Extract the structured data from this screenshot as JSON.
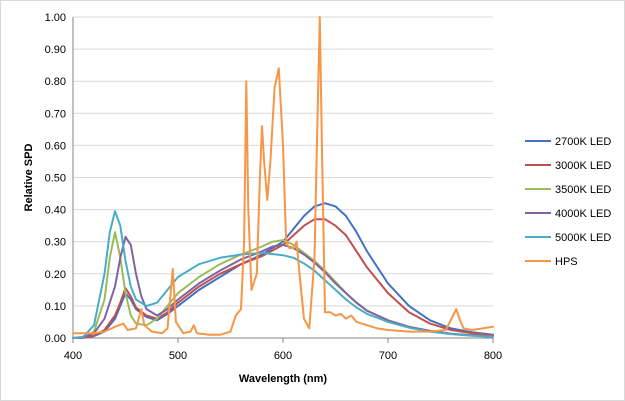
{
  "chart_data": {
    "type": "line",
    "xlabel": "Wavelength (nm)",
    "ylabel": "Relative SPD",
    "xlim": [
      400,
      800
    ],
    "ylim": [
      0,
      1
    ],
    "xticks": [
      "400",
      "500",
      "600",
      "700",
      "800"
    ],
    "yticks": [
      "0.00",
      "0.10",
      "0.20",
      "0.30",
      "0.40",
      "0.50",
      "0.60",
      "0.70",
      "0.80",
      "0.90",
      "1.00"
    ],
    "grid": "horizontal",
    "legend_position": "right",
    "series": [
      {
        "name": "2700K LED",
        "color": "#4472C4",
        "points": [
          [
            400,
            0
          ],
          [
            410,
            0.001
          ],
          [
            420,
            0.006
          ],
          [
            430,
            0.02
          ],
          [
            440,
            0.06
          ],
          [
            445,
            0.1
          ],
          [
            450,
            0.14
          ],
          [
            455,
            0.12
          ],
          [
            460,
            0.09
          ],
          [
            470,
            0.065
          ],
          [
            480,
            0.055
          ],
          [
            490,
            0.075
          ],
          [
            500,
            0.1
          ],
          [
            520,
            0.15
          ],
          [
            540,
            0.19
          ],
          [
            560,
            0.23
          ],
          [
            580,
            0.26
          ],
          [
            600,
            0.3
          ],
          [
            610,
            0.34
          ],
          [
            620,
            0.38
          ],
          [
            630,
            0.41
          ],
          [
            640,
            0.42
          ],
          [
            650,
            0.41
          ],
          [
            660,
            0.38
          ],
          [
            670,
            0.33
          ],
          [
            680,
            0.27
          ],
          [
            690,
            0.22
          ],
          [
            700,
            0.17
          ],
          [
            720,
            0.1
          ],
          [
            740,
            0.055
          ],
          [
            760,
            0.03
          ],
          [
            780,
            0.018
          ],
          [
            800,
            0.01
          ]
        ]
      },
      {
        "name": "3000K LED",
        "color": "#C0504D",
        "points": [
          [
            400,
            0
          ],
          [
            410,
            0.001
          ],
          [
            420,
            0.007
          ],
          [
            430,
            0.025
          ],
          [
            440,
            0.07
          ],
          [
            445,
            0.11
          ],
          [
            450,
            0.155
          ],
          [
            455,
            0.13
          ],
          [
            460,
            0.095
          ],
          [
            470,
            0.07
          ],
          [
            480,
            0.06
          ],
          [
            490,
            0.08
          ],
          [
            500,
            0.11
          ],
          [
            520,
            0.16
          ],
          [
            540,
            0.2
          ],
          [
            560,
            0.23
          ],
          [
            580,
            0.255
          ],
          [
            600,
            0.29
          ],
          [
            610,
            0.32
          ],
          [
            620,
            0.35
          ],
          [
            630,
            0.37
          ],
          [
            640,
            0.37
          ],
          [
            650,
            0.35
          ],
          [
            660,
            0.32
          ],
          [
            670,
            0.27
          ],
          [
            680,
            0.22
          ],
          [
            690,
            0.18
          ],
          [
            700,
            0.14
          ],
          [
            720,
            0.08
          ],
          [
            740,
            0.045
          ],
          [
            760,
            0.025
          ],
          [
            780,
            0.015
          ],
          [
            800,
            0.008
          ]
        ]
      },
      {
        "name": "3500K LED",
        "color": "#9BBB59",
        "points": [
          [
            400,
            0
          ],
          [
            410,
            0.002
          ],
          [
            420,
            0.02
          ],
          [
            430,
            0.12
          ],
          [
            435,
            0.25
          ],
          [
            440,
            0.33
          ],
          [
            445,
            0.25
          ],
          [
            450,
            0.14
          ],
          [
            455,
            0.07
          ],
          [
            460,
            0.045
          ],
          [
            470,
            0.04
          ],
          [
            480,
            0.06
          ],
          [
            490,
            0.1
          ],
          [
            500,
            0.14
          ],
          [
            520,
            0.19
          ],
          [
            540,
            0.23
          ],
          [
            560,
            0.26
          ],
          [
            580,
            0.285
          ],
          [
            590,
            0.3
          ],
          [
            600,
            0.305
          ],
          [
            610,
            0.29
          ],
          [
            620,
            0.265
          ],
          [
            630,
            0.24
          ],
          [
            640,
            0.21
          ],
          [
            650,
            0.175
          ],
          [
            660,
            0.14
          ],
          [
            670,
            0.11
          ],
          [
            680,
            0.085
          ],
          [
            700,
            0.055
          ],
          [
            720,
            0.035
          ],
          [
            740,
            0.022
          ],
          [
            760,
            0.013
          ],
          [
            780,
            0.008
          ],
          [
            800,
            0.005
          ]
        ]
      },
      {
        "name": "4000K LED",
        "color": "#8064A2",
        "points": [
          [
            400,
            0
          ],
          [
            410,
            0.002
          ],
          [
            420,
            0.015
          ],
          [
            430,
            0.06
          ],
          [
            440,
            0.16
          ],
          [
            445,
            0.25
          ],
          [
            450,
            0.315
          ],
          [
            455,
            0.29
          ],
          [
            460,
            0.2
          ],
          [
            465,
            0.13
          ],
          [
            470,
            0.09
          ],
          [
            480,
            0.07
          ],
          [
            490,
            0.09
          ],
          [
            500,
            0.12
          ],
          [
            520,
            0.17
          ],
          [
            540,
            0.21
          ],
          [
            560,
            0.245
          ],
          [
            580,
            0.27
          ],
          [
            590,
            0.285
          ],
          [
            600,
            0.29
          ],
          [
            610,
            0.28
          ],
          [
            620,
            0.26
          ],
          [
            630,
            0.235
          ],
          [
            640,
            0.205
          ],
          [
            650,
            0.17
          ],
          [
            660,
            0.14
          ],
          [
            670,
            0.11
          ],
          [
            680,
            0.085
          ],
          [
            700,
            0.055
          ],
          [
            720,
            0.035
          ],
          [
            740,
            0.022
          ],
          [
            760,
            0.013
          ],
          [
            780,
            0.008
          ],
          [
            800,
            0.005
          ]
        ]
      },
      {
        "name": "5000K LED",
        "color": "#4BACC6",
        "points": [
          [
            400,
            0
          ],
          [
            410,
            0.004
          ],
          [
            420,
            0.04
          ],
          [
            430,
            0.2
          ],
          [
            435,
            0.33
          ],
          [
            440,
            0.395
          ],
          [
            445,
            0.35
          ],
          [
            450,
            0.24
          ],
          [
            455,
            0.16
          ],
          [
            460,
            0.12
          ],
          [
            470,
            0.1
          ],
          [
            480,
            0.11
          ],
          [
            490,
            0.15
          ],
          [
            500,
            0.19
          ],
          [
            520,
            0.23
          ],
          [
            540,
            0.25
          ],
          [
            560,
            0.26
          ],
          [
            580,
            0.265
          ],
          [
            600,
            0.258
          ],
          [
            610,
            0.25
          ],
          [
            620,
            0.232
          ],
          [
            630,
            0.21
          ],
          [
            640,
            0.18
          ],
          [
            650,
            0.15
          ],
          [
            660,
            0.12
          ],
          [
            670,
            0.095
          ],
          [
            680,
            0.075
          ],
          [
            700,
            0.05
          ],
          [
            720,
            0.032
          ],
          [
            740,
            0.02
          ],
          [
            760,
            0.012
          ],
          [
            780,
            0.007
          ],
          [
            800,
            0.004
          ]
        ]
      },
      {
        "name": "HPS",
        "color": "#F79646",
        "points": [
          [
            400,
            0.015
          ],
          [
            420,
            0.015
          ],
          [
            430,
            0.02
          ],
          [
            440,
            0.035
          ],
          [
            448,
            0.045
          ],
          [
            452,
            0.025
          ],
          [
            460,
            0.03
          ],
          [
            465,
            0.09
          ],
          [
            468,
            0.04
          ],
          [
            475,
            0.02
          ],
          [
            485,
            0.015
          ],
          [
            490,
            0.03
          ],
          [
            495,
            0.215
          ],
          [
            498,
            0.05
          ],
          [
            505,
            0.015
          ],
          [
            512,
            0.02
          ],
          [
            515,
            0.04
          ],
          [
            518,
            0.015
          ],
          [
            530,
            0.01
          ],
          [
            540,
            0.01
          ],
          [
            550,
            0.02
          ],
          [
            555,
            0.07
          ],
          [
            560,
            0.09
          ],
          [
            563,
            0.3
          ],
          [
            565,
            0.8
          ],
          [
            567,
            0.4
          ],
          [
            570,
            0.15
          ],
          [
            575,
            0.2
          ],
          [
            578,
            0.5
          ],
          [
            580,
            0.66
          ],
          [
            582,
            0.55
          ],
          [
            585,
            0.43
          ],
          [
            588,
            0.55
          ],
          [
            592,
            0.78
          ],
          [
            596,
            0.84
          ],
          [
            600,
            0.6
          ],
          [
            603,
            0.3
          ],
          [
            606,
            0.28
          ],
          [
            610,
            0.28
          ],
          [
            613,
            0.3
          ],
          [
            616,
            0.19
          ],
          [
            620,
            0.06
          ],
          [
            625,
            0.03
          ],
          [
            630,
            0.25
          ],
          [
            633,
            0.7
          ],
          [
            635,
            1.0
          ],
          [
            637,
            0.6
          ],
          [
            640,
            0.08
          ],
          [
            645,
            0.08
          ],
          [
            650,
            0.07
          ],
          [
            655,
            0.075
          ],
          [
            660,
            0.06
          ],
          [
            665,
            0.07
          ],
          [
            670,
            0.05
          ],
          [
            680,
            0.04
          ],
          [
            690,
            0.03
          ],
          [
            700,
            0.025
          ],
          [
            720,
            0.02
          ],
          [
            740,
            0.02
          ],
          [
            755,
            0.025
          ],
          [
            762,
            0.07
          ],
          [
            765,
            0.09
          ],
          [
            768,
            0.06
          ],
          [
            772,
            0.03
          ],
          [
            780,
            0.025
          ],
          [
            790,
            0.03
          ],
          [
            800,
            0.035
          ]
        ]
      }
    ]
  }
}
